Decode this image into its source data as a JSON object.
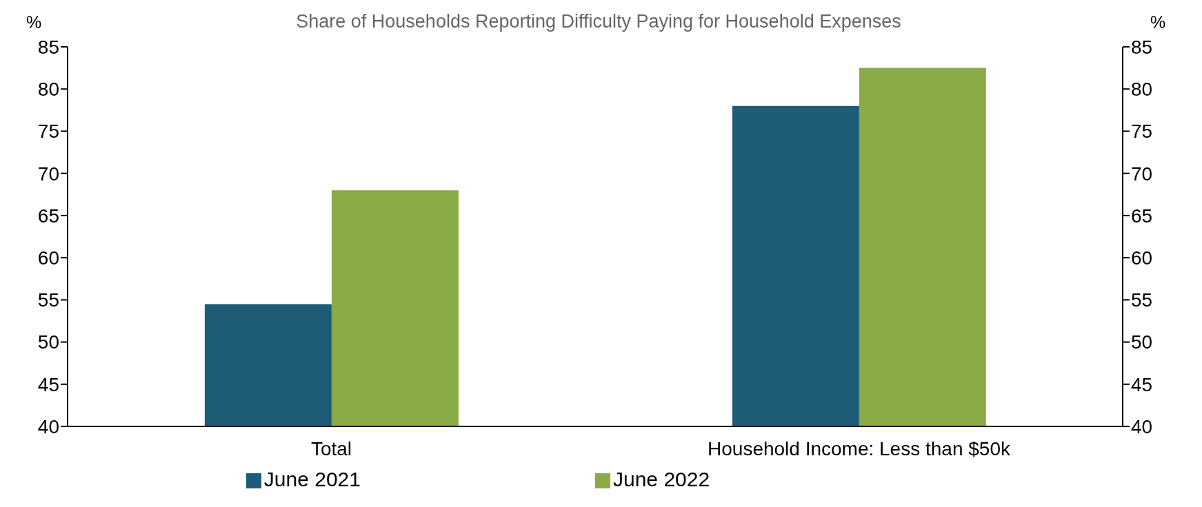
{
  "chart_data": {
    "type": "bar",
    "title": "Share of Households Reporting Difficulty Paying for Household Expenses",
    "ylabel": "%",
    "y2label": "%",
    "categories": [
      "Total",
      "Household Income: Less than $50k"
    ],
    "series": [
      {
        "name": "June 2021",
        "color": "#1f5c78",
        "values": [
          54.5,
          78
        ]
      },
      {
        "name": "June 2022",
        "color": "#8aab46",
        "values": [
          68,
          82.5
        ]
      }
    ],
    "ylim": [
      40,
      85
    ],
    "yticks": [
      40,
      45,
      50,
      55,
      60,
      65,
      70,
      75,
      80,
      85
    ],
    "y2lim": [
      40,
      85
    ],
    "y2ticks": [
      40,
      45,
      50,
      55,
      60,
      65,
      70,
      75,
      80,
      85
    ],
    "legend": "bottom"
  }
}
